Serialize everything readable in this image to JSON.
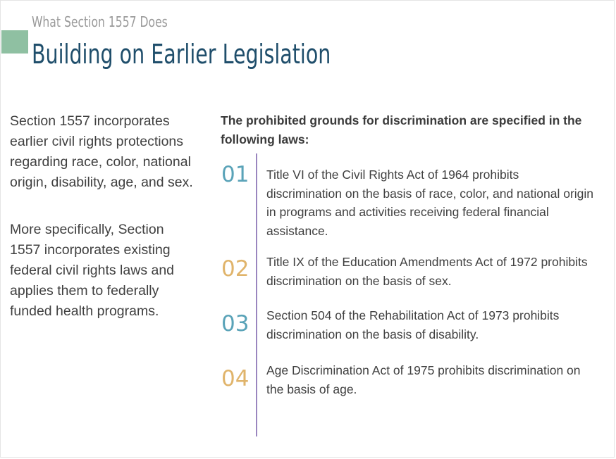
{
  "header": {
    "subtitle": "What Section 1557 Does",
    "title": "Building on Earlier Legislation",
    "accent_color": "#8fc0a2",
    "title_color": "#1f4e6b"
  },
  "left": {
    "paragraphs": [
      "Section 1557 incorporates earlier civil rights protections regarding race, color, national origin, disability, age, and sex.",
      "More specifically, Section 1557 incorporates existing federal civil rights laws and applies them to federally funded health programs."
    ]
  },
  "right": {
    "intro": "The prohibited grounds for discrimination are specified in the following laws:",
    "divider_color": "#9a86bf",
    "items": [
      {
        "num": "01",
        "color": "#5aa3b8",
        "text": "Title VI of the Civil Rights Act of 1964 prohibits discrimination on the basis of race, color, and national origin in programs and activities receiving federal financial assistance."
      },
      {
        "num": "02",
        "color": "#e0b46b",
        "text": "Title IX of the Education Amendments Act of 1972 prohibits discrimination on the basis of sex."
      },
      {
        "num": "03",
        "color": "#5aa3b8",
        "text": "Section 504 of the Rehabilitation Act of 1973 prohibits discrimination on the basis of disability."
      },
      {
        "num": "04",
        "color": "#e0b46b",
        "text": "Age Discrimination Act of 1975 prohibits discrimination on the basis of age."
      }
    ]
  }
}
